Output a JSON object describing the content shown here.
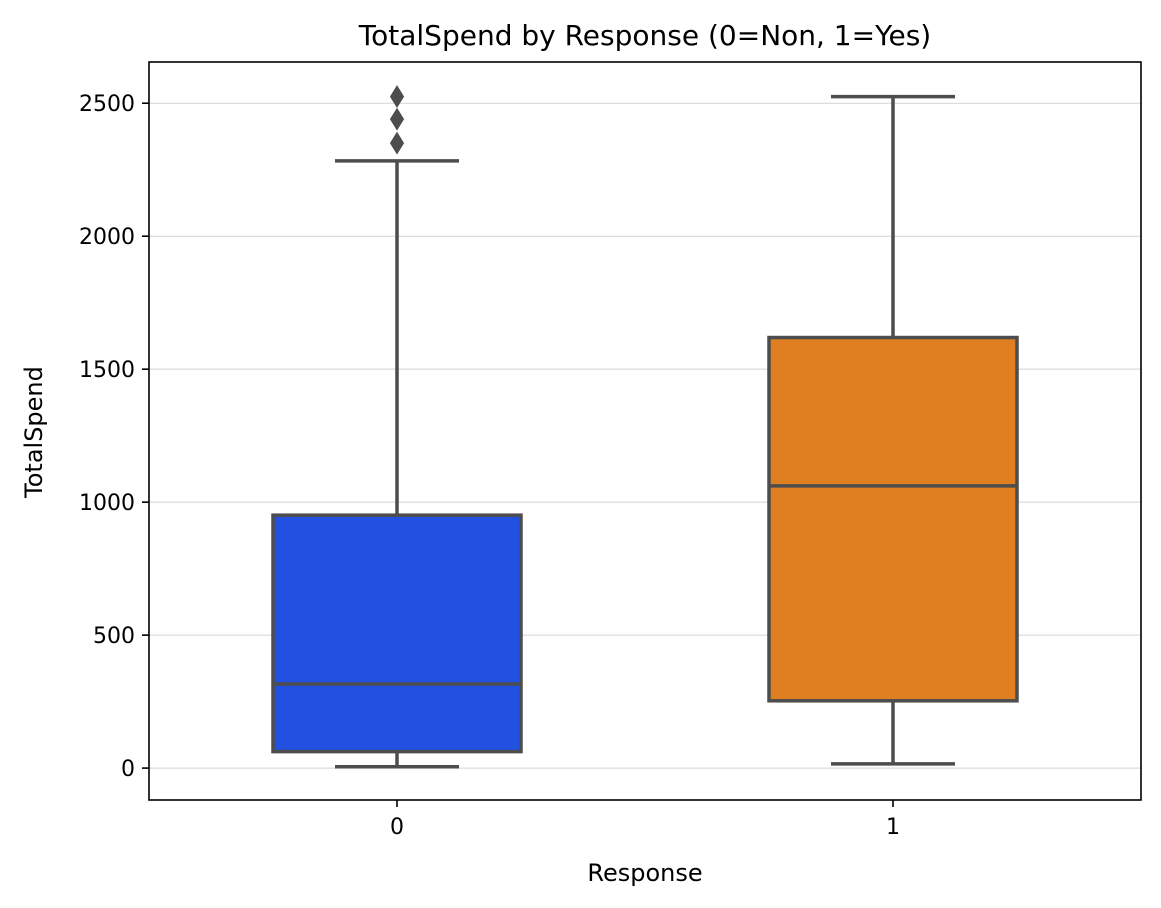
{
  "chart_data": {
    "type": "box",
    "title": "TotalSpend by Response (0=Non, 1=Yes)",
    "xlabel": "Response",
    "ylabel": "TotalSpend",
    "categories": [
      "0",
      "1"
    ],
    "ylim": [
      -120,
      2655
    ],
    "yticks": [
      0,
      500,
      1000,
      1500,
      2000,
      2500
    ],
    "grid": "horizontal",
    "boxes": [
      {
        "category": "0",
        "color": "#2251e1",
        "whisker_low": 5,
        "q1": 62,
        "median": 316,
        "q3": 951,
        "whisker_high": 2283,
        "outliers": [
          2350,
          2440,
          2525
        ]
      },
      {
        "category": "1",
        "color": "#e07e22",
        "whisker_low": 16,
        "q1": 253,
        "median": 1061,
        "q3": 1619,
        "whisker_high": 2525,
        "outliers": []
      }
    ],
    "line_color": "#4d4d4d",
    "grid_color": "#d3d3d3"
  }
}
